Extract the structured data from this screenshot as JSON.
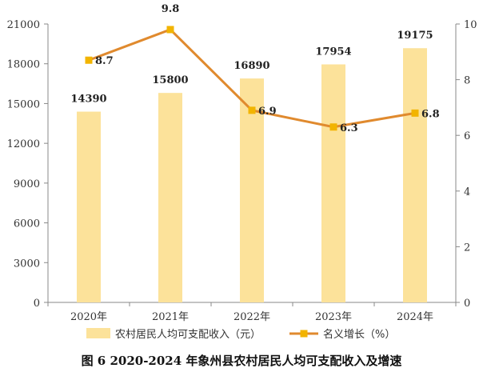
{
  "chart_data": {
    "type": "bar",
    "title": "图 6   2020-2024 年象州县农村居民人均可支配收入及增速",
    "categories": [
      "2020年",
      "2021年",
      "2022年",
      "2023年",
      "2024年"
    ],
    "series": [
      {
        "name": "农村居民人均可支配收入（元）",
        "type": "bar",
        "axis": "left",
        "values": [
          14390,
          15800,
          16890,
          17954,
          19175
        ],
        "color": "#FCE29A"
      },
      {
        "name": "名义增长（%）",
        "type": "line",
        "axis": "right",
        "values": [
          8.7,
          9.8,
          6.9,
          6.3,
          6.8
        ],
        "color": "#E08A2E",
        "marker_color": "#F2B400"
      }
    ],
    "y_left": {
      "min": 0,
      "max": 21000,
      "ticks": [
        0,
        3000,
        6000,
        9000,
        12000,
        15000,
        18000,
        21000
      ]
    },
    "y_right": {
      "min": 0,
      "max": 10,
      "ticks": [
        0,
        2,
        4,
        6,
        8,
        10
      ]
    },
    "legend_position": "bottom",
    "grid": false
  }
}
